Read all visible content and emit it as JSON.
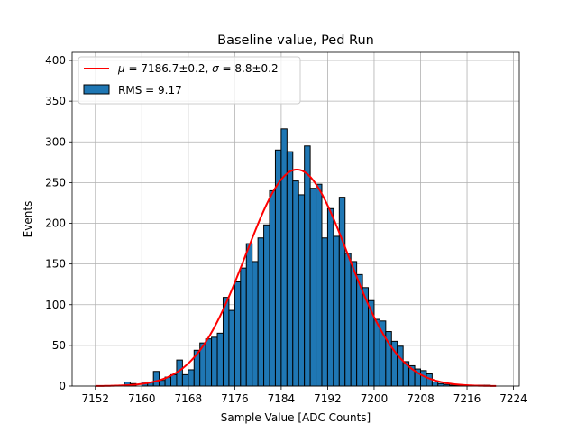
{
  "chart_data": {
    "type": "bar",
    "title": "Baseline value, Ped Run",
    "xlabel": "Sample Value [ADC Counts]",
    "ylabel": "Events",
    "xlim": [
      7148,
      7225
    ],
    "ylim": [
      0,
      410
    ],
    "xticks": [
      7152,
      7160,
      7168,
      7176,
      7184,
      7192,
      7200,
      7208,
      7216,
      7224
    ],
    "yticks": [
      0,
      50,
      100,
      150,
      200,
      250,
      300,
      350,
      400
    ],
    "grid": true,
    "legend_position": "top-left",
    "histogram": {
      "name": "RMS = 9.17",
      "color": "#1f77b4",
      "bin_edges": [
        7152,
        7153,
        7154,
        7155,
        7156,
        7157,
        7158,
        7159,
        7160,
        7161,
        7162,
        7163,
        7164,
        7165,
        7166,
        7167,
        7168,
        7169,
        7170,
        7171,
        7172,
        7173,
        7174,
        7175,
        7176,
        7177,
        7178,
        7179,
        7180,
        7181,
        7182,
        7183,
        7184,
        7185,
        7186,
        7187,
        7188,
        7189,
        7190,
        7191,
        7192,
        7193,
        7194,
        7195,
        7196,
        7197,
        7198,
        7199,
        7200,
        7201,
        7202,
        7203,
        7204,
        7205,
        7206,
        7207,
        7208,
        7209,
        7210,
        7211,
        7212,
        7213,
        7214,
        7215,
        7216,
        7217,
        7218,
        7219,
        7220,
        7221
      ],
      "counts": [
        0,
        0,
        0,
        0,
        0,
        5,
        3,
        0,
        5,
        5,
        18,
        7,
        11,
        14,
        32,
        14,
        20,
        44,
        53,
        58,
        60,
        65,
        109,
        93,
        128,
        145,
        175,
        153,
        182,
        198,
        240,
        290,
        316,
        288,
        252,
        235,
        295,
        243,
        248,
        182,
        218,
        184,
        232,
        163,
        153,
        137,
        121,
        105,
        82,
        80,
        67,
        55,
        49,
        30,
        25,
        21,
        19,
        15,
        5,
        3,
        2,
        1,
        1,
        1,
        1,
        1,
        1,
        1,
        0
      ]
    },
    "fit": {
      "name_mu_symbol": "μ",
      "name_mu_text": " = 7186.7±0.2, ",
      "name_sigma_symbol": "σ",
      "name_sigma_text": " = 8.8±0.2",
      "color": "#ff0000",
      "mu": 7186.7,
      "sigma": 8.8,
      "amplitude": 266,
      "x_range": [
        7152,
        7221
      ]
    }
  }
}
